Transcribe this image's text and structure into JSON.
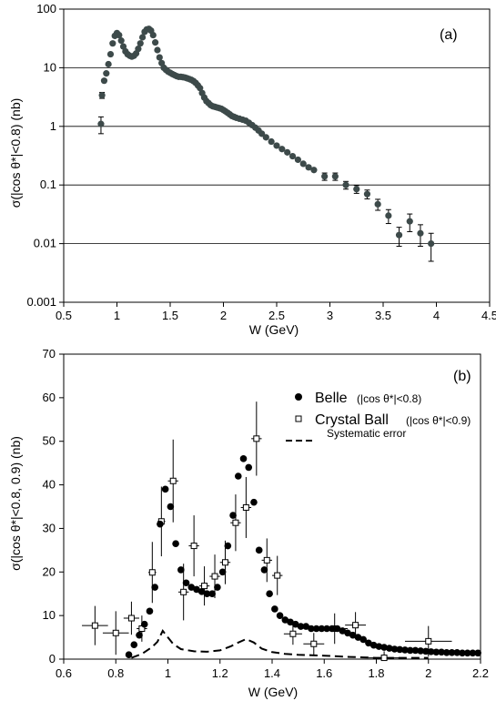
{
  "chart_data": [
    {
      "type": "scatter",
      "panel_label": "(a)",
      "xlabel": "W (GeV)",
      "ylabel": "σ(|cos θ*|<0.8) (nb)",
      "xlim": [
        0.5,
        4.5
      ],
      "ylim": [
        0.001,
        100
      ],
      "yscale": "log",
      "x_ticks": [
        "0.5",
        "1",
        "1.5",
        "2",
        "2.5",
        "3",
        "3.5",
        "4",
        "4.5"
      ],
      "y_ticks": [
        "0.001",
        "0.01",
        "0.1",
        "1",
        "10",
        "100"
      ],
      "grid": "horizontal at decades",
      "marker_color": "#3d4a4a",
      "series": [
        {
          "points": [
            {
              "x": 0.85,
              "y": 1.1,
              "err": 0.35
            },
            {
              "x": 0.86,
              "y": 3.4,
              "err": 0.4
            },
            {
              "x": 0.88,
              "y": 6.0
            },
            {
              "x": 0.9,
              "y": 8.0
            },
            {
              "x": 0.92,
              "y": 11.5
            },
            {
              "x": 0.94,
              "y": 17
            },
            {
              "x": 0.96,
              "y": 26
            },
            {
              "x": 0.98,
              "y": 35
            },
            {
              "x": 1.0,
              "y": 39
            },
            {
              "x": 1.02,
              "y": 36
            },
            {
              "x": 1.04,
              "y": 29
            },
            {
              "x": 1.06,
              "y": 23
            },
            {
              "x": 1.08,
              "y": 19
            },
            {
              "x": 1.1,
              "y": 17
            },
            {
              "x": 1.12,
              "y": 16
            },
            {
              "x": 1.14,
              "y": 15.5
            },
            {
              "x": 1.16,
              "y": 16
            },
            {
              "x": 1.18,
              "y": 17.5
            },
            {
              "x": 1.2,
              "y": 21
            },
            {
              "x": 1.22,
              "y": 26
            },
            {
              "x": 1.24,
              "y": 33
            },
            {
              "x": 1.26,
              "y": 41
            },
            {
              "x": 1.28,
              "y": 45
            },
            {
              "x": 1.3,
              "y": 46
            },
            {
              "x": 1.32,
              "y": 43
            },
            {
              "x": 1.34,
              "y": 36
            },
            {
              "x": 1.36,
              "y": 27
            },
            {
              "x": 1.38,
              "y": 20
            },
            {
              "x": 1.4,
              "y": 15
            },
            {
              "x": 1.42,
              "y": 12
            },
            {
              "x": 1.44,
              "y": 10
            },
            {
              "x": 1.46,
              "y": 9.2
            },
            {
              "x": 1.48,
              "y": 8.6
            },
            {
              "x": 1.5,
              "y": 8.2
            },
            {
              "x": 1.52,
              "y": 7.8
            },
            {
              "x": 1.54,
              "y": 7.5
            },
            {
              "x": 1.56,
              "y": 7.2
            },
            {
              "x": 1.58,
              "y": 7.0
            },
            {
              "x": 1.6,
              "y": 7.0
            },
            {
              "x": 1.62,
              "y": 6.9
            },
            {
              "x": 1.64,
              "y": 6.8
            },
            {
              "x": 1.66,
              "y": 6.6
            },
            {
              "x": 1.68,
              "y": 6.4
            },
            {
              "x": 1.7,
              "y": 6.2
            },
            {
              "x": 1.72,
              "y": 5.9
            },
            {
              "x": 1.74,
              "y": 5.5
            },
            {
              "x": 1.76,
              "y": 5.0
            },
            {
              "x": 1.78,
              "y": 4.5
            },
            {
              "x": 1.8,
              "y": 3.7
            },
            {
              "x": 1.82,
              "y": 3.1
            },
            {
              "x": 1.84,
              "y": 2.7
            },
            {
              "x": 1.86,
              "y": 2.5
            },
            {
              "x": 1.88,
              "y": 2.3
            },
            {
              "x": 1.9,
              "y": 2.2
            },
            {
              "x": 1.92,
              "y": 2.15
            },
            {
              "x": 1.94,
              "y": 2.1
            },
            {
              "x": 1.96,
              "y": 2.05
            },
            {
              "x": 1.98,
              "y": 2.0
            },
            {
              "x": 2.0,
              "y": 1.9
            },
            {
              "x": 2.02,
              "y": 1.8
            },
            {
              "x": 2.04,
              "y": 1.7
            },
            {
              "x": 2.06,
              "y": 1.6
            },
            {
              "x": 2.08,
              "y": 1.5
            },
            {
              "x": 2.1,
              "y": 1.45
            },
            {
              "x": 2.12,
              "y": 1.4
            },
            {
              "x": 2.15,
              "y": 1.35
            },
            {
              "x": 2.18,
              "y": 1.3
            },
            {
              "x": 2.21,
              "y": 1.25
            },
            {
              "x": 2.24,
              "y": 1.15
            },
            {
              "x": 2.27,
              "y": 1.05
            },
            {
              "x": 2.3,
              "y": 0.95
            },
            {
              "x": 2.33,
              "y": 0.85
            },
            {
              "x": 2.36,
              "y": 0.75
            },
            {
              "x": 2.4,
              "y": 0.65
            },
            {
              "x": 2.45,
              "y": 0.55
            },
            {
              "x": 2.5,
              "y": 0.47
            },
            {
              "x": 2.55,
              "y": 0.41
            },
            {
              "x": 2.6,
              "y": 0.36
            },
            {
              "x": 2.65,
              "y": 0.31
            },
            {
              "x": 2.7,
              "y": 0.27
            },
            {
              "x": 2.75,
              "y": 0.23
            },
            {
              "x": 2.8,
              "y": 0.2
            },
            {
              "x": 2.85,
              "y": 0.18
            },
            {
              "x": 2.95,
              "y": 0.14,
              "err": 0.02
            },
            {
              "x": 3.05,
              "y": 0.14,
              "err": 0.02
            },
            {
              "x": 3.15,
              "y": 0.1,
              "err": 0.015
            },
            {
              "x": 3.25,
              "y": 0.085,
              "err": 0.013
            },
            {
              "x": 3.35,
              "y": 0.07,
              "err": 0.012
            },
            {
              "x": 3.45,
              "y": 0.047,
              "err": 0.01
            },
            {
              "x": 3.55,
              "y": 0.03,
              "err": 0.008
            },
            {
              "x": 3.65,
              "y": 0.014,
              "err": 0.005
            },
            {
              "x": 3.75,
              "y": 0.024,
              "err": 0.008
            },
            {
              "x": 3.85,
              "y": 0.015,
              "err": 0.006
            },
            {
              "x": 3.95,
              "y": 0.01,
              "err": 0.005
            }
          ]
        }
      ]
    },
    {
      "type": "scatter",
      "panel_label": "(b)",
      "xlabel": "W (GeV)",
      "ylabel": "σ(|cos θ*|<0.8, 0.9) (nb)",
      "xlim": [
        0.6,
        2.2
      ],
      "ylim": [
        0,
        70
      ],
      "yscale": "linear",
      "x_ticks": [
        "0.6",
        "0.8",
        "1",
        "1.2",
        "1.4",
        "1.6",
        "1.8",
        "2",
        "2.2"
      ],
      "y_ticks": [
        "0",
        "10",
        "20",
        "30",
        "40",
        "50",
        "60",
        "70"
      ],
      "grid": "off",
      "legend": {
        "position": "top-right",
        "entries": [
          {
            "name": "Belle",
            "sub": "(|cos θ*|<0.8)",
            "marker": "filled-circle"
          },
          {
            "name": "Crystal Ball",
            "sub": "(|cos θ*|<0.9)",
            "marker": "open-square"
          },
          {
            "name": "Systematic error",
            "sub": "",
            "marker": "dashed-line"
          }
        ]
      },
      "series": [
        {
          "name": "Belle",
          "x": [
            0.85,
            0.87,
            0.89,
            0.91,
            0.93,
            0.95,
            0.97,
            0.99,
            1.01,
            1.03,
            1.05,
            1.07,
            1.09,
            1.11,
            1.13,
            1.15,
            1.17,
            1.19,
            1.21,
            1.23,
            1.25,
            1.27,
            1.29,
            1.31,
            1.33,
            1.35,
            1.37,
            1.39,
            1.41,
            1.43,
            1.45,
            1.47,
            1.49,
            1.51,
            1.53,
            1.55,
            1.57,
            1.59,
            1.61,
            1.63,
            1.65,
            1.67,
            1.69,
            1.71,
            1.73,
            1.75,
            1.77,
            1.79,
            1.81,
            1.83,
            1.85,
            1.87,
            1.89,
            1.91,
            1.93,
            1.95,
            1.97,
            1.99,
            2.01,
            2.03,
            2.05,
            2.07,
            2.09,
            2.11,
            2.13,
            2.15,
            2.17,
            2.19
          ],
          "values": [
            1.0,
            3.3,
            5.5,
            8.0,
            11.0,
            16.5,
            31.0,
            39.0,
            35.0,
            26.5,
            20.5,
            17.5,
            16.5,
            16.0,
            15.5,
            15.0,
            15.0,
            16.5,
            20.0,
            26.0,
            33.0,
            42.0,
            46.0,
            44.0,
            36.0,
            25.0,
            20.5,
            15.0,
            11.5,
            10.0,
            9.0,
            8.5,
            8.0,
            7.5,
            7.5,
            7.0,
            7.0,
            7.0,
            7.0,
            7.0,
            7.0,
            6.5,
            6.0,
            5.5,
            5.0,
            4.5,
            3.7,
            3.2,
            2.9,
            2.7,
            2.5,
            2.3,
            2.2,
            2.1,
            2.0,
            2.0,
            1.9,
            1.8,
            1.7,
            1.6,
            1.6,
            1.5,
            1.5,
            1.5,
            1.4,
            1.4,
            1.4,
            1.4
          ]
        },
        {
          "name": "Crystal Ball",
          "points": [
            {
              "x": 0.72,
              "y": 7.7,
              "xerr": 0.05,
              "yerr": 4.5
            },
            {
              "x": 0.8,
              "y": 6.0,
              "xerr": 0.05,
              "yerr": 5.0
            },
            {
              "x": 0.86,
              "y": 9.4,
              "xerr": 0.03,
              "yerr": 3.8
            },
            {
              "x": 0.9,
              "y": 7.0,
              "xerr": 0.02,
              "yerr": 3.0
            },
            {
              "x": 0.94,
              "y": 19.9,
              "xerr": 0.015,
              "yerr": 7.0
            },
            {
              "x": 0.975,
              "y": 31.6,
              "xerr": 0.015,
              "yerr": 8.0
            },
            {
              "x": 1.02,
              "y": 40.9,
              "xerr": 0.02,
              "yerr": 9.5
            },
            {
              "x": 1.06,
              "y": 15.4,
              "xerr": 0.02,
              "yerr": 6.5
            },
            {
              "x": 1.1,
              "y": 26.0,
              "xerr": 0.02,
              "yerr": 7.0
            },
            {
              "x": 1.14,
              "y": 16.8,
              "xerr": 0.02,
              "yerr": 4.5
            },
            {
              "x": 1.18,
              "y": 19.0,
              "xerr": 0.02,
              "yerr": 5.0
            },
            {
              "x": 1.22,
              "y": 22.2,
              "xerr": 0.02,
              "yerr": 5.0
            },
            {
              "x": 1.26,
              "y": 31.3,
              "xerr": 0.02,
              "yerr": 6.5
            },
            {
              "x": 1.3,
              "y": 34.8,
              "xerr": 0.02,
              "yerr": 7.0
            },
            {
              "x": 1.34,
              "y": 50.6,
              "xerr": 0.02,
              "yerr": 8.5
            },
            {
              "x": 1.38,
              "y": 22.7,
              "xerr": 0.02,
              "yerr": 5.0
            },
            {
              "x": 1.42,
              "y": 19.2,
              "xerr": 0.02,
              "yerr": 4.5
            },
            {
              "x": 1.48,
              "y": 5.8,
              "xerr": 0.035,
              "yerr": 2.5
            },
            {
              "x": 1.56,
              "y": 3.5,
              "xerr": 0.04,
              "yerr": 2.5
            },
            {
              "x": 1.64,
              "y": 7.0,
              "xerr": 0.05,
              "yerr": 3.5
            },
            {
              "x": 1.72,
              "y": 7.8,
              "xerr": 0.04,
              "yerr": 3.0
            },
            {
              "x": 1.83,
              "y": 0.3,
              "xerr": 0.06,
              "yerr": 1.5
            },
            {
              "x": 2.0,
              "y": 4.1,
              "xerr": 0.09,
              "yerr": 3.5
            }
          ]
        },
        {
          "name": "Systematic error",
          "x": [
            0.86,
            0.9,
            0.94,
            0.96,
            0.98,
            1.0,
            1.02,
            1.05,
            1.1,
            1.15,
            1.2,
            1.24,
            1.27,
            1.3,
            1.33,
            1.36,
            1.4,
            1.45,
            1.5,
            1.6,
            1.7,
            1.8,
            1.9,
            2.0
          ],
          "values": [
            0.3,
            1.2,
            2.8,
            4.0,
            6.5,
            5.0,
            3.5,
            2.3,
            1.8,
            1.7,
            2.0,
            2.9,
            3.8,
            4.6,
            3.8,
            2.4,
            1.6,
            1.2,
            1.0,
            0.8,
            0.5,
            0.3,
            0.3,
            0.3
          ]
        }
      ]
    }
  ]
}
